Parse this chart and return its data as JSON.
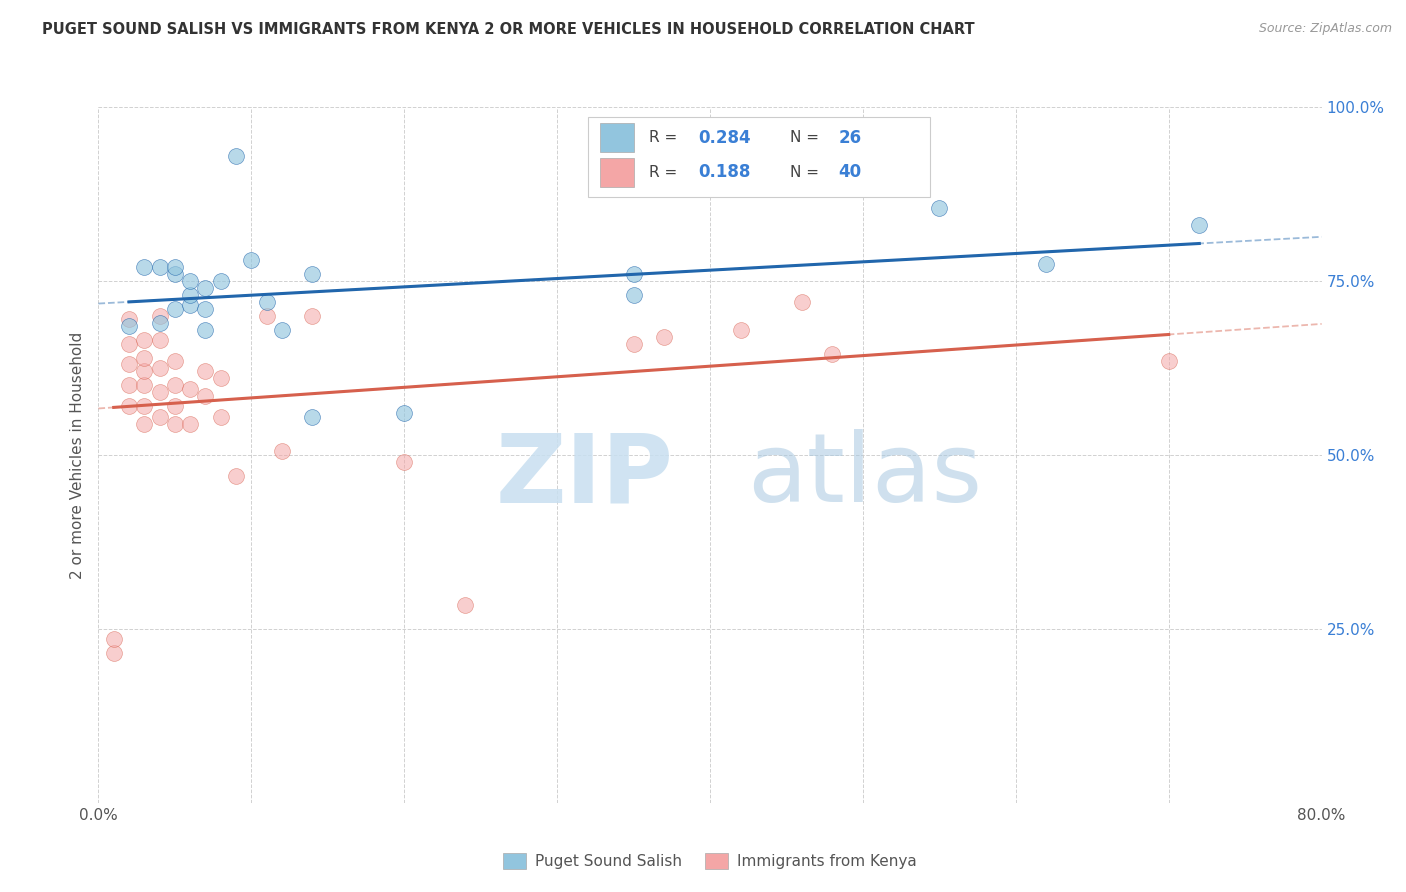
{
  "title": "PUGET SOUND SALISH VS IMMIGRANTS FROM KENYA 2 OR MORE VEHICLES IN HOUSEHOLD CORRELATION CHART",
  "source": "Source: ZipAtlas.com",
  "ylabel": "2 or more Vehicles in Household",
  "xlim": [
    0.0,
    0.8
  ],
  "ylim": [
    0.0,
    1.0
  ],
  "xtick_positions": [
    0.0,
    0.1,
    0.2,
    0.3,
    0.4,
    0.5,
    0.6,
    0.7,
    0.8
  ],
  "xticklabels": [
    "0.0%",
    "",
    "",
    "",
    "",
    "",
    "",
    "",
    "80.0%"
  ],
  "ytick_positions": [
    0.0,
    0.25,
    0.5,
    0.75,
    1.0
  ],
  "yticklabels": [
    "",
    "25.0%",
    "50.0%",
    "75.0%",
    "100.0%"
  ],
  "blue_color": "#92c5de",
  "pink_color": "#f4a6a6",
  "blue_line_color": "#2166ac",
  "pink_line_color": "#d6604d",
  "blue_scatter_alpha": 0.65,
  "pink_scatter_alpha": 0.55,
  "blue_points_x": [
    0.02,
    0.03,
    0.04,
    0.04,
    0.05,
    0.05,
    0.05,
    0.06,
    0.06,
    0.06,
    0.07,
    0.07,
    0.07,
    0.08,
    0.09,
    0.1,
    0.11,
    0.12,
    0.14,
    0.14,
    0.2,
    0.35,
    0.35,
    0.55,
    0.62,
    0.72
  ],
  "blue_points_y": [
    0.685,
    0.77,
    0.69,
    0.77,
    0.71,
    0.76,
    0.77,
    0.715,
    0.73,
    0.75,
    0.68,
    0.71,
    0.74,
    0.75,
    0.93,
    0.78,
    0.72,
    0.68,
    0.76,
    0.555,
    0.56,
    0.73,
    0.76,
    0.855,
    0.775,
    0.83
  ],
  "pink_points_x": [
    0.01,
    0.01,
    0.02,
    0.02,
    0.02,
    0.02,
    0.02,
    0.03,
    0.03,
    0.03,
    0.03,
    0.03,
    0.03,
    0.04,
    0.04,
    0.04,
    0.04,
    0.04,
    0.05,
    0.05,
    0.05,
    0.05,
    0.06,
    0.06,
    0.07,
    0.07,
    0.08,
    0.08,
    0.09,
    0.11,
    0.12,
    0.14,
    0.2,
    0.24,
    0.35,
    0.37,
    0.42,
    0.46,
    0.48,
    0.7
  ],
  "pink_points_y": [
    0.215,
    0.235,
    0.57,
    0.6,
    0.63,
    0.66,
    0.695,
    0.545,
    0.57,
    0.6,
    0.62,
    0.64,
    0.665,
    0.555,
    0.59,
    0.625,
    0.665,
    0.7,
    0.545,
    0.57,
    0.6,
    0.635,
    0.545,
    0.595,
    0.585,
    0.62,
    0.555,
    0.61,
    0.47,
    0.7,
    0.505,
    0.7,
    0.49,
    0.285,
    0.66,
    0.67,
    0.68,
    0.72,
    0.645,
    0.635
  ],
  "legend_r1": "0.284",
  "legend_n1": "26",
  "legend_r2": "0.188",
  "legend_n2": "40",
  "watermark_zip": "ZIP",
  "watermark_atlas": "atlas"
}
